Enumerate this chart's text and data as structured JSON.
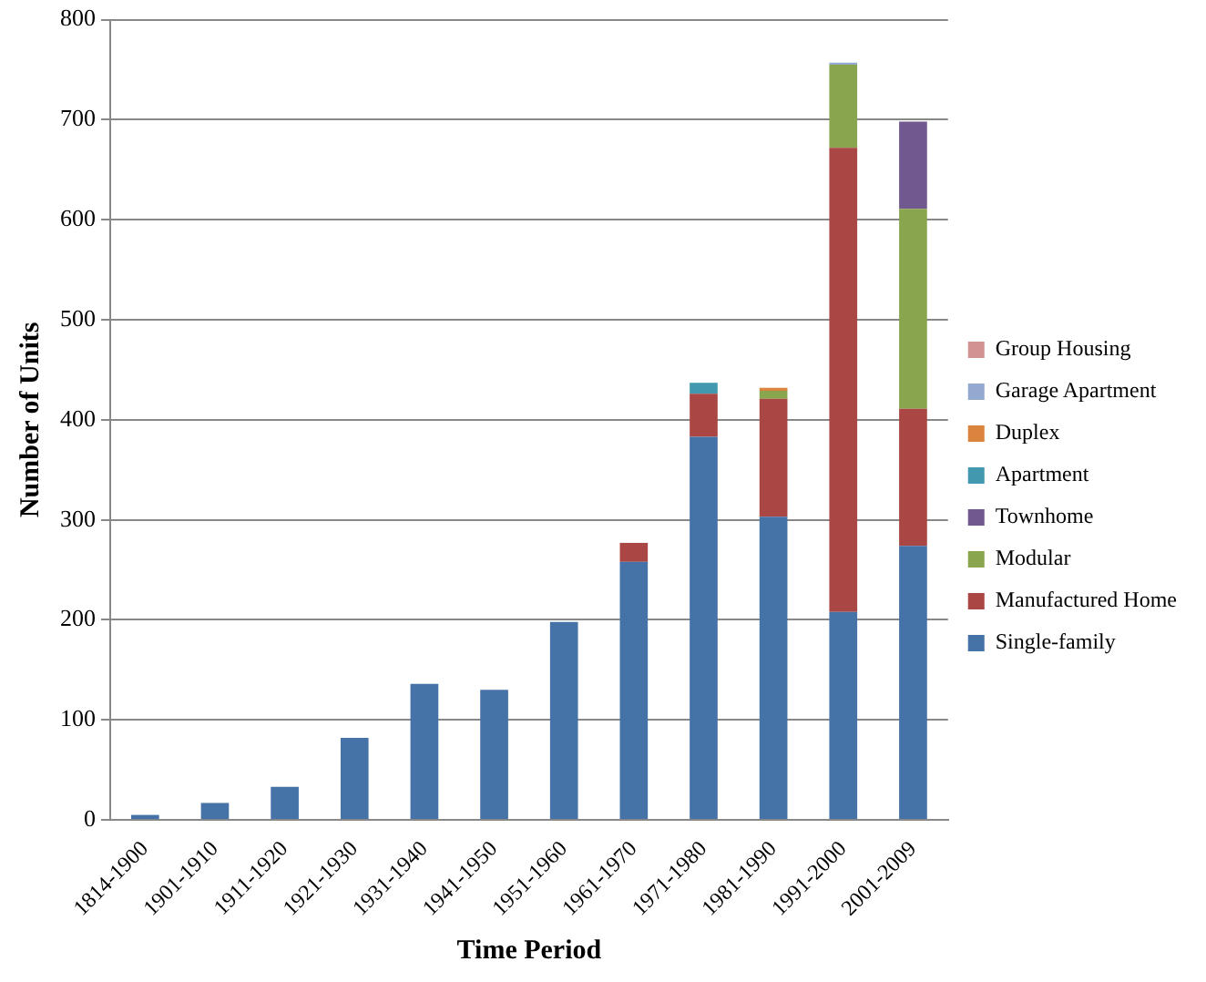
{
  "chart_data": {
    "type": "bar",
    "xlabel": "Time Period",
    "ylabel": "Number of Units",
    "categories": [
      "1814-1900",
      "1901-1910",
      "1911-1920",
      "1921-1930",
      "1931-1940",
      "1941-1950",
      "1951-1960",
      "1961-1970",
      "1971-1980",
      "1981-1990",
      "1991-2000",
      "2001-2009"
    ],
    "stacked": true,
    "ylim": [
      0,
      800
    ],
    "yticks": [
      0,
      100,
      200,
      300,
      400,
      500,
      600,
      700,
      800
    ],
    "grid": "y",
    "legend": "right",
    "series": [
      {
        "name": "Single-family",
        "color": "#4572a7",
        "values": [
          5,
          17,
          33,
          82,
          136,
          130,
          198,
          258,
          383,
          303,
          208,
          274
        ]
      },
      {
        "name": "Manufactured Home",
        "color": "#aa4643",
        "values": [
          null,
          null,
          null,
          null,
          null,
          null,
          null,
          19,
          43,
          118,
          464,
          137
        ]
      },
      {
        "name": "Modular",
        "color": "#89a54e",
        "values": [
          null,
          null,
          null,
          null,
          null,
          null,
          null,
          null,
          null,
          8,
          83,
          200
        ]
      },
      {
        "name": "Townhome",
        "color": "#71588f",
        "values": [
          null,
          null,
          null,
          null,
          null,
          null,
          null,
          null,
          null,
          null,
          null,
          87
        ]
      },
      {
        "name": "Apartment",
        "color": "#4198af",
        "values": [
          null,
          null,
          null,
          null,
          null,
          null,
          null,
          null,
          11,
          null,
          null,
          null
        ]
      },
      {
        "name": "Duplex",
        "color": "#db843d",
        "values": [
          null,
          null,
          null,
          null,
          null,
          null,
          null,
          null,
          null,
          3,
          null,
          null
        ]
      },
      {
        "name": "Garage Apartment",
        "color": "#93a9cf",
        "values": [
          null,
          null,
          null,
          null,
          null,
          null,
          null,
          null,
          null,
          null,
          2,
          null
        ]
      },
      {
        "name": "Group Housing",
        "color": "#d19392",
        "values": [
          null,
          null,
          null,
          null,
          null,
          null,
          null,
          null,
          null,
          null,
          null,
          null
        ]
      }
    ]
  }
}
